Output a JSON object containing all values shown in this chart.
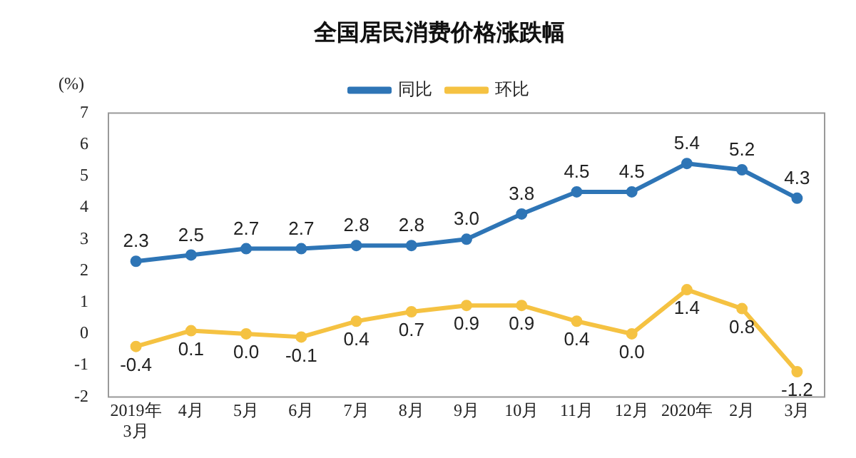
{
  "chart_data": {
    "type": "line",
    "title": "全国居民消费价格涨跌幅",
    "ylabel": "(%)",
    "categories": [
      "2019年\n3月",
      "4月",
      "5月",
      "6月",
      "7月",
      "8月",
      "9月",
      "10月",
      "11月",
      "12月",
      "2020年",
      "2月",
      "3月"
    ],
    "series": [
      {
        "name": "同比",
        "color": "#2e75b6",
        "values": [
          2.3,
          2.5,
          2.7,
          2.7,
          2.8,
          2.8,
          3.0,
          3.8,
          4.5,
          4.5,
          5.4,
          5.2,
          4.3
        ],
        "value_labels": [
          "2.3",
          "2.5",
          "2.7",
          "2.7",
          "2.8",
          "2.8",
          "3.0",
          "3.8",
          "4.5",
          "4.5",
          "5.4",
          "5.2",
          "4.3"
        ]
      },
      {
        "name": "环比",
        "color": "#f5c242",
        "values": [
          -0.4,
          0.1,
          0.0,
          -0.1,
          0.4,
          0.7,
          0.9,
          0.9,
          0.4,
          0.0,
          1.4,
          0.8,
          -1.2
        ],
        "value_labels": [
          "-0.4",
          "0.1",
          "0.0",
          "-0.1",
          "0.4",
          "0.7",
          "0.9",
          "0.9",
          "0.4",
          "0.0",
          "1.4",
          "0.8",
          "-1.2"
        ]
      }
    ],
    "ylim": [
      -2,
      7
    ],
    "yticks": [
      -2,
      -1,
      0,
      1,
      2,
      3,
      4,
      5,
      6,
      7
    ],
    "grid": false,
    "legend": "top",
    "marker": "circle",
    "line_style": "solid"
  }
}
